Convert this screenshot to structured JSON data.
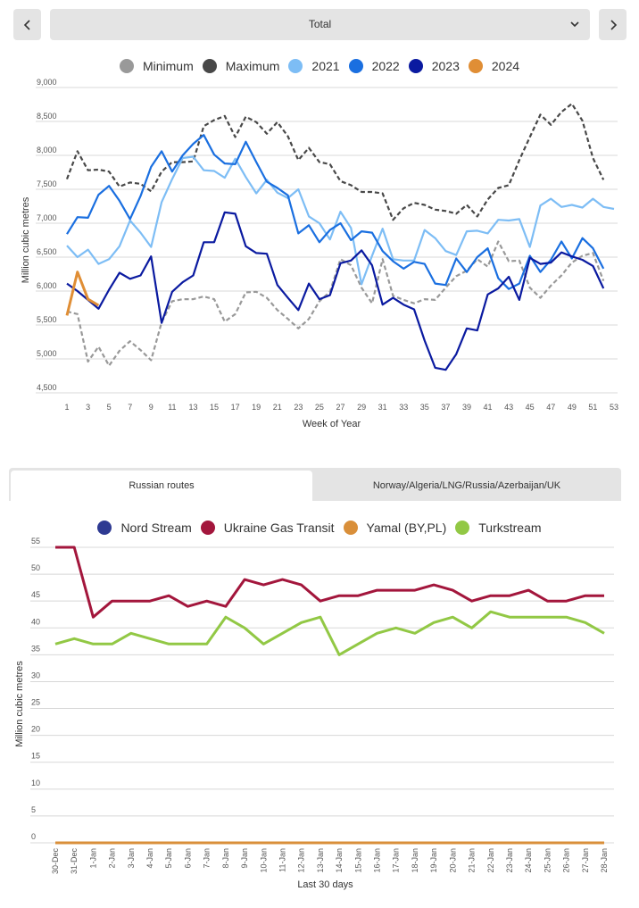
{
  "nav": {
    "prev_label": "previous",
    "next_label": "next",
    "selected_value": "Total"
  },
  "chart_data": [
    {
      "type": "line",
      "title": "",
      "xlabel": "Week of Year",
      "ylabel": "Million cubic metres",
      "x": [
        1,
        2,
        3,
        4,
        5,
        6,
        7,
        8,
        9,
        10,
        11,
        12,
        13,
        14,
        15,
        16,
        17,
        18,
        19,
        20,
        21,
        22,
        23,
        24,
        25,
        26,
        27,
        28,
        29,
        30,
        31,
        32,
        33,
        34,
        35,
        36,
        37,
        38,
        39,
        40,
        41,
        42,
        43,
        44,
        45,
        46,
        47,
        48,
        49,
        50,
        51,
        52,
        53
      ],
      "xticks": [
        "1",
        "3",
        "5",
        "7",
        "9",
        "11",
        "13",
        "15",
        "17",
        "19",
        "21",
        "23",
        "25",
        "27",
        "29",
        "31",
        "33",
        "35",
        "37",
        "39",
        "41",
        "43",
        "45",
        "47",
        "49",
        "51",
        "53"
      ],
      "xlim": [
        1,
        53
      ],
      "ylim": [
        4500,
        9000
      ],
      "yticks": [
        "4,500",
        "5,000",
        "5,500",
        "6,000",
        "6,500",
        "7,000",
        "7,500",
        "8,000",
        "8,500",
        "9,000"
      ],
      "ytick_values": [
        4500,
        5000,
        5500,
        6000,
        6500,
        7000,
        7500,
        8000,
        8500,
        9000
      ],
      "grid": true,
      "legend_position": "top-center",
      "series": [
        {
          "name": "Minimum",
          "color": "#999999",
          "dashed": true,
          "values": [
            5700,
            5660,
            4960,
            5180,
            4900,
            5120,
            5260,
            5130,
            4980,
            5540,
            5850,
            5880,
            5880,
            5920,
            5880,
            5550,
            5660,
            5980,
            5990,
            5900,
            5720,
            5590,
            5450,
            5590,
            5850,
            5990,
            6470,
            6380,
            6050,
            5820,
            6470,
            5930,
            5870,
            5820,
            5880,
            5870,
            6050,
            6220,
            6300,
            6470,
            6360,
            6730,
            6440,
            6450,
            6050,
            5900,
            6080,
            6230,
            6420,
            6520,
            6560,
            6150
          ]
        },
        {
          "name": "Maximum",
          "color": "#484848",
          "dashed": true,
          "values": [
            7650,
            8060,
            7780,
            7790,
            7760,
            7540,
            7600,
            7580,
            7470,
            7760,
            7900,
            7900,
            7910,
            8430,
            8520,
            8580,
            8270,
            8570,
            8490,
            8320,
            8490,
            8280,
            7930,
            8110,
            7900,
            7870,
            7620,
            7560,
            7460,
            7460,
            7440,
            7050,
            7220,
            7300,
            7270,
            7200,
            7180,
            7140,
            7270,
            7100,
            7350,
            7520,
            7560,
            7930,
            8270,
            8600,
            8450,
            8640,
            8760,
            8510,
            7960,
            7640
          ]
        },
        {
          "name": "2021",
          "color": "#7dbdf5",
          "dashed": false,
          "values": [
            6670,
            6500,
            6610,
            6400,
            6470,
            6660,
            7040,
            6860,
            6650,
            7310,
            7650,
            7960,
            7980,
            7780,
            7770,
            7670,
            7950,
            7680,
            7440,
            7640,
            7450,
            7370,
            7500,
            7100,
            7000,
            6760,
            7170,
            6930,
            6100,
            6520,
            6920,
            6470,
            6450,
            6450,
            6900,
            6780,
            6590,
            6530,
            6880,
            6890,
            6850,
            7050,
            7040,
            7060,
            6650,
            7260,
            7360,
            7240,
            7270,
            7230,
            7360,
            7240,
            7210
          ]
        },
        {
          "name": "2022",
          "color": "#1a6fe0",
          "dashed": false,
          "values": [
            6840,
            7090,
            7080,
            7420,
            7550,
            7330,
            7060,
            7400,
            7830,
            8060,
            7760,
            8000,
            8170,
            8300,
            8010,
            7880,
            7870,
            8200,
            7900,
            7610,
            7520,
            7410,
            6850,
            6970,
            6720,
            6900,
            7000,
            6750,
            6880,
            6860,
            6590,
            6440,
            6330,
            6430,
            6400,
            6110,
            6090,
            6480,
            6280,
            6500,
            6630,
            6190,
            6030,
            6110,
            6520,
            6280,
            6460,
            6730,
            6480,
            6780,
            6630,
            6330
          ]
        },
        {
          "name": "2023",
          "color": "#0a1aa0",
          "dashed": false,
          "values": [
            6110,
            6000,
            5870,
            5740,
            6020,
            6270,
            6180,
            6230,
            6510,
            5530,
            5990,
            6130,
            6230,
            6720,
            6720,
            7160,
            7140,
            6660,
            6560,
            6550,
            6090,
            5900,
            5720,
            6110,
            5880,
            5940,
            6410,
            6450,
            6600,
            6380,
            5800,
            5900,
            5800,
            5730,
            5270,
            4870,
            4840,
            5070,
            5450,
            5420,
            5950,
            6040,
            6210,
            5870,
            6490,
            6400,
            6420,
            6570,
            6510,
            6460,
            6370,
            6040
          ]
        },
        {
          "name": "2024",
          "color": "#e08e35",
          "dashed": false,
          "values": [
            5640,
            6280,
            5880,
            5790
          ]
        }
      ]
    },
    {
      "type": "line",
      "title": "",
      "xlabel": "Last 30 days",
      "ylabel": "Million cubic metres",
      "categories": [
        "30-Dec",
        "31-Dec",
        "1-Jan",
        "2-Jan",
        "3-Jan",
        "4-Jan",
        "5-Jan",
        "6-Jan",
        "7-Jan",
        "8-Jan",
        "9-Jan",
        "10-Jan",
        "11-Jan",
        "12-Jan",
        "13-Jan",
        "14-Jan",
        "15-Jan",
        "16-Jan",
        "17-Jan",
        "18-Jan",
        "19-Jan",
        "20-Jan",
        "21-Jan",
        "22-Jan",
        "23-Jan",
        "24-Jan",
        "25-Jan",
        "26-Jan",
        "27-Jan",
        "28-Jan"
      ],
      "ylim": [
        0,
        55
      ],
      "yticks": [
        "0",
        "5",
        "10",
        "15",
        "20",
        "25",
        "30",
        "35",
        "40",
        "45",
        "50",
        "55"
      ],
      "ytick_values": [
        0,
        5,
        10,
        15,
        20,
        25,
        30,
        35,
        40,
        45,
        50,
        55
      ],
      "grid": true,
      "legend_position": "top-center",
      "series": [
        {
          "name": "Nord Stream",
          "color": "#2e3a92",
          "values": [
            0,
            0,
            0,
            0,
            0,
            0,
            0,
            0,
            0,
            0,
            0,
            0,
            0,
            0,
            0,
            0,
            0,
            0,
            0,
            0,
            0,
            0,
            0,
            0,
            0,
            0,
            0,
            0,
            0,
            0
          ]
        },
        {
          "name": "Ukraine Gas Transit",
          "color": "#a3163c",
          "values": [
            55,
            55,
            42,
            45,
            45,
            45,
            46,
            44,
            45,
            44,
            49,
            48,
            49,
            48,
            45,
            46,
            46,
            47,
            47,
            47,
            48,
            47,
            45,
            46,
            46,
            47,
            45,
            45,
            46,
            46
          ]
        },
        {
          "name": "Yamal (BY,PL)",
          "color": "#d98f3a",
          "values": [
            0,
            0,
            0,
            0,
            0,
            0,
            0,
            0,
            0,
            0,
            0,
            0,
            0,
            0,
            0,
            0,
            0,
            0,
            0,
            0,
            0,
            0,
            0,
            0,
            0,
            0,
            0,
            0,
            0,
            0
          ]
        },
        {
          "name": "Turkstream",
          "color": "#92c845",
          "values": [
            37,
            38,
            37,
            37,
            39,
            38,
            37,
            37,
            37,
            42,
            40,
            37,
            39,
            41,
            42,
            35,
            37,
            39,
            40,
            39,
            41,
            42,
            40,
            43,
            42,
            42,
            42,
            42,
            41,
            39
          ]
        }
      ]
    }
  ],
  "tabs": [
    {
      "label": "Russian routes",
      "active": true
    },
    {
      "label": "Norway/Algeria/LNG/Russia/Azerbaijan/UK",
      "active": false
    }
  ],
  "icons": {
    "prev": "chevron-left-icon",
    "next": "chevron-right-icon",
    "dropdown": "chevron-down-icon",
    "legend": "circle-icon"
  }
}
